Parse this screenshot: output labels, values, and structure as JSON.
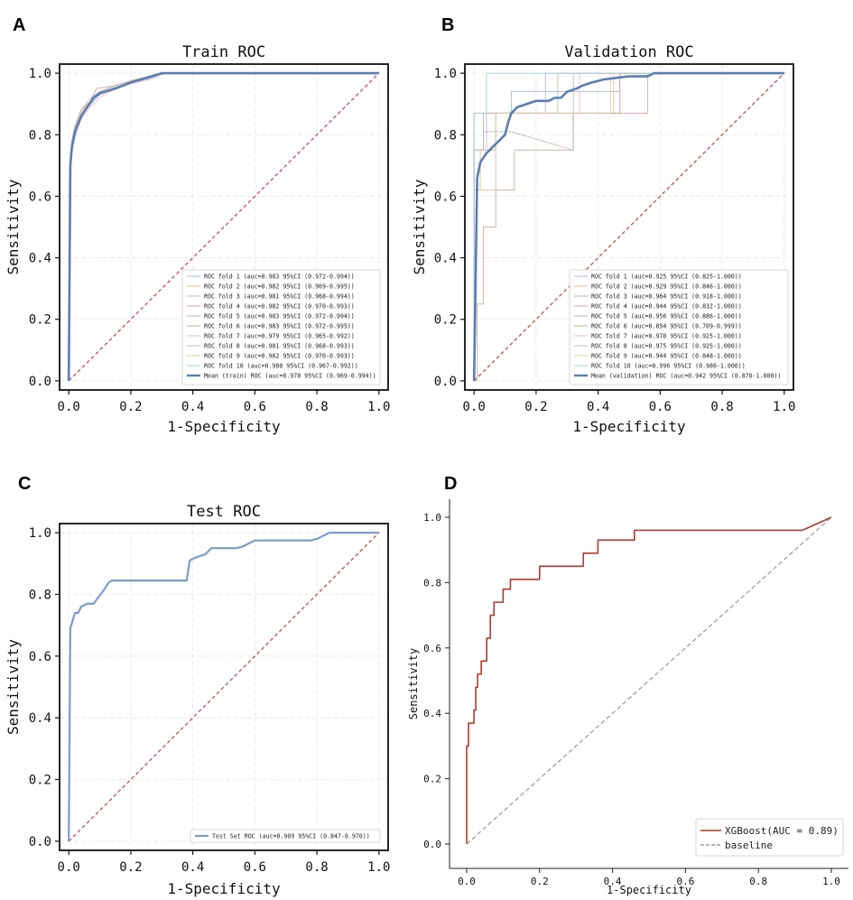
{
  "chart_data": [
    {
      "panel": "A",
      "type": "line",
      "title": "Train ROC",
      "xlabel": "1-Specificity",
      "ylabel": "Sensitivity",
      "xlim": [
        0,
        1
      ],
      "ylim": [
        0,
        1
      ],
      "xticks": [
        "0.0",
        "0.2",
        "0.4",
        "0.6",
        "0.8",
        "1.0"
      ],
      "yticks": [
        "0.0",
        "0.2",
        "0.4",
        "0.6",
        "0.8",
        "1.0"
      ],
      "grid": true,
      "legend_position": "lower-right",
      "series": [
        {
          "name": "ROC fold    1 (auc=0.983 95%CI (0.972-0.994))",
          "color": "#a8bdd8",
          "width": 1,
          "x": [
            0,
            0.005,
            0.01,
            0.02,
            0.04,
            0.07,
            0.1,
            0.15,
            0.2,
            0.26,
            0.3,
            1.0
          ],
          "y": [
            0,
            0.72,
            0.77,
            0.82,
            0.87,
            0.91,
            0.94,
            0.96,
            0.975,
            0.99,
            1,
            1
          ]
        },
        {
          "name": "ROC fold    2 (auc=0.982 95%CI (0.969-0.995))",
          "color": "#e8b99a",
          "width": 1,
          "x": [
            0,
            0.005,
            0.01,
            0.02,
            0.04,
            0.07,
            0.1,
            0.15,
            0.2,
            0.27,
            0.3,
            1.0
          ],
          "y": [
            0,
            0.7,
            0.76,
            0.81,
            0.86,
            0.9,
            0.93,
            0.955,
            0.97,
            0.99,
            1,
            1
          ]
        },
        {
          "name": "ROC fold    3 (auc=0.981 95%CI (0.968-0.994))",
          "color": "#a9c9a4",
          "width": 1,
          "x": [
            0,
            0.005,
            0.01,
            0.02,
            0.04,
            0.07,
            0.1,
            0.15,
            0.2,
            0.27,
            0.3,
            1.0
          ],
          "y": [
            0,
            0.69,
            0.75,
            0.8,
            0.86,
            0.9,
            0.93,
            0.95,
            0.97,
            0.985,
            1,
            1
          ]
        },
        {
          "name": "ROC fold    4 (auc=0.982 95%CI (0.970-0.993))",
          "color": "#d9a2a2",
          "width": 1,
          "x": [
            0,
            0.005,
            0.01,
            0.02,
            0.04,
            0.07,
            0.09,
            0.15,
            0.2,
            0.26,
            0.3,
            1.0
          ],
          "y": [
            0,
            0.71,
            0.77,
            0.82,
            0.87,
            0.91,
            0.95,
            0.96,
            0.975,
            0.99,
            1,
            1
          ]
        },
        {
          "name": "ROC fold    5 (auc=0.983 95%CI (0.972-0.994))",
          "color": "#c2b3d6",
          "width": 1,
          "x": [
            0,
            0.005,
            0.01,
            0.02,
            0.04,
            0.07,
            0.1,
            0.15,
            0.2,
            0.26,
            0.3,
            1.0
          ],
          "y": [
            0,
            0.73,
            0.78,
            0.83,
            0.88,
            0.92,
            0.94,
            0.96,
            0.975,
            0.99,
            1,
            1
          ]
        },
        {
          "name": "ROC fold    6 (auc=0.983 95%CI (0.972-0.995))",
          "color": "#c9ad9b",
          "width": 1,
          "x": [
            0,
            0.005,
            0.01,
            0.02,
            0.04,
            0.07,
            0.1,
            0.15,
            0.2,
            0.26,
            0.3,
            1.0
          ],
          "y": [
            0,
            0.72,
            0.78,
            0.83,
            0.88,
            0.91,
            0.94,
            0.96,
            0.975,
            0.99,
            1,
            1
          ]
        },
        {
          "name": "ROC fold    7 (auc=0.979 95%CI (0.965-0.992))",
          "color": "#e9bcd6",
          "width": 1,
          "x": [
            0,
            0.005,
            0.01,
            0.02,
            0.04,
            0.07,
            0.1,
            0.15,
            0.2,
            0.28,
            0.31,
            1.0
          ],
          "y": [
            0,
            0.68,
            0.74,
            0.79,
            0.85,
            0.89,
            0.92,
            0.95,
            0.965,
            0.985,
            1,
            1
          ]
        },
        {
          "name": "ROC fold    8 (auc=0.981 95%CI (0.968-0.993))",
          "color": "#bdbdbd",
          "width": 1,
          "x": [
            0,
            0.005,
            0.01,
            0.02,
            0.04,
            0.07,
            0.1,
            0.15,
            0.2,
            0.27,
            0.3,
            1.0
          ],
          "y": [
            0,
            0.7,
            0.76,
            0.81,
            0.86,
            0.9,
            0.93,
            0.95,
            0.97,
            0.985,
            1,
            1
          ]
        },
        {
          "name": "ROC fold    9 (auc=0.982 95%CI (0.970-0.993))",
          "color": "#d8d49a",
          "width": 1,
          "x": [
            0,
            0.005,
            0.01,
            0.02,
            0.04,
            0.07,
            0.1,
            0.15,
            0.2,
            0.26,
            0.3,
            1.0
          ],
          "y": [
            0,
            0.71,
            0.77,
            0.82,
            0.87,
            0.91,
            0.935,
            0.955,
            0.97,
            0.99,
            1,
            1
          ]
        },
        {
          "name": "ROC fold   10 (auc=0.980 95%CI (0.967-0.992))",
          "color": "#9fd1d8",
          "width": 1,
          "x": [
            0,
            0.005,
            0.01,
            0.02,
            0.04,
            0.07,
            0.1,
            0.15,
            0.2,
            0.27,
            0.3,
            1.0
          ],
          "y": [
            0,
            0.69,
            0.75,
            0.8,
            0.86,
            0.9,
            0.93,
            0.95,
            0.97,
            0.985,
            1,
            1
          ]
        },
        {
          "name": "Mean (train) ROC (auc=0.978 95%CI (0.969-0.994))",
          "color": "#5b7db4",
          "width": 2.6,
          "x": [
            0,
            0.005,
            0.01,
            0.02,
            0.04,
            0.06,
            0.08,
            0.1,
            0.15,
            0.2,
            0.25,
            0.3,
            1.0
          ],
          "y": [
            0,
            0.7,
            0.76,
            0.81,
            0.86,
            0.89,
            0.92,
            0.935,
            0.95,
            0.97,
            0.985,
            1,
            1
          ]
        }
      ],
      "baseline": {
        "x": [
          0,
          1
        ],
        "y": [
          0,
          1
        ],
        "color": "#c44e52",
        "style": "dashed"
      }
    },
    {
      "panel": "B",
      "type": "line",
      "title": "Validation ROC",
      "xlabel": "1-Specificity",
      "ylabel": "Sensitivity",
      "xlim": [
        0,
        1
      ],
      "ylim": [
        0,
        1
      ],
      "xticks": [
        "0.0",
        "0.2",
        "0.4",
        "0.6",
        "0.8",
        "1.0"
      ],
      "yticks": [
        "0.0",
        "0.2",
        "0.4",
        "0.6",
        "0.8",
        "1.0"
      ],
      "grid": true,
      "legend_position": "lower-right",
      "series": [
        {
          "name": "ROC fold    1 (auc=0.925 95%CI (0.825-1.000))",
          "color": "#a8bdd8",
          "width": 1,
          "x": [
            0,
            0,
            0.02,
            0.02,
            0.07,
            0.07,
            0.12,
            0.12,
            0.47,
            0.47,
            1.0
          ],
          "y": [
            0,
            0.62,
            0.62,
            0.75,
            0.75,
            0.87,
            0.87,
            0.94,
            0.94,
            1,
            1
          ]
        },
        {
          "name": "ROC fold    2 (auc=0.929 95%CI (0.846-1.000))",
          "color": "#e8b99a",
          "width": 1,
          "x": [
            0,
            0,
            0.07,
            0.07,
            0.13,
            0.13,
            0.45,
            0.45,
            1.0
          ],
          "y": [
            0,
            0.62,
            0.62,
            0.87,
            0.87,
            0.87,
            0.87,
            1,
            1
          ]
        },
        {
          "name": "ROC fold    3 (auc=0.964 95%CI (0.918-1.000))",
          "color": "#a9c9a4",
          "width": 1,
          "x": [
            0,
            0,
            0.03,
            0.03,
            0.1,
            0.1,
            0.27,
            0.27,
            1.0
          ],
          "y": [
            0,
            0.75,
            0.75,
            0.87,
            0.87,
            0.87,
            0.87,
            1,
            1
          ]
        },
        {
          "name": "ROC fold    4 (auc=0.944 95%CI (0.832-1.000))",
          "color": "#d9a2a2",
          "width": 1,
          "x": [
            0,
            0,
            0.05,
            0.05,
            0.12,
            0.12,
            0.42,
            0.42,
            0.47,
            0.47,
            1.0
          ],
          "y": [
            0,
            0.87,
            0.87,
            0.87,
            0.87,
            0.87,
            0.87,
            0.87,
            0.87,
            1,
            1
          ]
        },
        {
          "name": "ROC fold    5 (auc=0.956 95%CI (0.886-1.000))",
          "color": "#c2b3d6",
          "width": 1,
          "x": [
            0,
            0,
            0.04,
            0.04,
            0.12,
            0.12,
            0.23,
            0.23,
            1.0
          ],
          "y": [
            0,
            0.75,
            0.75,
            0.87,
            0.87,
            0.87,
            0.87,
            1,
            1
          ]
        },
        {
          "name": "ROC fold    6 (auc=0.854 95%CI (0.709-0.999))",
          "color": "#c9ad9b",
          "width": 1,
          "x": [
            0,
            0.01,
            0.01,
            0.03,
            0.03,
            0.07,
            0.07,
            0.13,
            0.13,
            0.32,
            0.32,
            0.56,
            0.56,
            1.0
          ],
          "y": [
            0,
            0,
            0.25,
            0.25,
            0.5,
            0.5,
            0.62,
            0.62,
            0.75,
            0.75,
            0.87,
            0.87,
            1,
            1
          ]
        },
        {
          "name": "ROC fold    7 (auc=0.970 95%CI (0.925-1.000))",
          "color": "#e9bcd6",
          "width": 1,
          "x": [
            0,
            0,
            0.04,
            0.04,
            0.12,
            0.12,
            0.34,
            0.34,
            1.0
          ],
          "y": [
            0,
            0.75,
            0.75,
            0.87,
            0.87,
            0.87,
            0.87,
            1,
            1
          ]
        },
        {
          "name": "ROC fold    8 (auc=0.975 95%CI (0.925-1.000))",
          "color": "#bdbdbd",
          "width": 1,
          "x": [
            0,
            0,
            0.03,
            0.03,
            0.12,
            0.12,
            0.32,
            0.32,
            1.0
          ],
          "y": [
            0,
            0.75,
            0.75,
            0.81,
            0.81,
            0.81,
            0.75,
            1,
            1
          ]
        },
        {
          "name": "ROC fold    9 (auc=0.944 95%CI (0.848-1.000))",
          "color": "#d8d49a",
          "width": 1,
          "x": [
            0,
            0,
            0.02,
            0.02,
            0.07,
            0.07,
            0.32,
            0.32,
            0.44,
            0.44,
            1.0
          ],
          "y": [
            0,
            0.62,
            0.62,
            0.75,
            0.75,
            0.87,
            0.87,
            0.87,
            0.87,
            1,
            1
          ]
        },
        {
          "name": "ROC fold   10 (auc=0.996 95%CI (0.986-1.000))",
          "color": "#9fd1d8",
          "width": 1,
          "x": [
            0,
            0,
            0.04,
            0.04,
            0.13,
            0.13,
            1.0
          ],
          "y": [
            0,
            0.87,
            0.87,
            1,
            1,
            1,
            1
          ]
        },
        {
          "name": "Mean (validation) ROC (auc=0.942 95%CI (0.870-1.000))",
          "color": "#5b7db4",
          "width": 2.6,
          "x": [
            0,
            0.01,
            0.02,
            0.04,
            0.06,
            0.08,
            0.1,
            0.11,
            0.12,
            0.14,
            0.2,
            0.24,
            0.26,
            0.28,
            0.3,
            0.33,
            0.35,
            0.38,
            0.42,
            0.5,
            0.56,
            0.58,
            0.6,
            1.0
          ],
          "y": [
            0,
            0.66,
            0.71,
            0.74,
            0.76,
            0.78,
            0.8,
            0.84,
            0.87,
            0.89,
            0.91,
            0.91,
            0.92,
            0.92,
            0.94,
            0.95,
            0.96,
            0.97,
            0.98,
            0.99,
            0.99,
            1,
            1,
            1
          ]
        }
      ],
      "baseline": {
        "x": [
          0,
          1
        ],
        "y": [
          0,
          1
        ],
        "color": "#c44e52",
        "style": "dashed"
      }
    },
    {
      "panel": "C",
      "type": "line",
      "title": "Test ROC",
      "xlabel": "1-Specificity",
      "ylabel": "Sensitivity",
      "xlim": [
        0,
        1
      ],
      "ylim": [
        0,
        1
      ],
      "xticks": [
        "0.0",
        "0.2",
        "0.4",
        "0.6",
        "0.8",
        "1.0"
      ],
      "yticks": [
        "0.0",
        "0.2",
        "0.4",
        "0.6",
        "0.8",
        "1.0"
      ],
      "grid": true,
      "legend_position": "lower-right",
      "series": [
        {
          "name": "Test Set ROC (auc=0.909 95%CI (0.847-0.970))",
          "color": "#7d9cc9",
          "width": 2.2,
          "x": [
            0,
            0.005,
            0.02,
            0.03,
            0.04,
            0.06,
            0.08,
            0.11,
            0.13,
            0.14,
            0.38,
            0.39,
            0.41,
            0.44,
            0.46,
            0.54,
            0.56,
            0.58,
            0.6,
            0.78,
            0.8,
            0.82,
            0.84,
            0.86,
            1.0
          ],
          "y": [
            0,
            0.69,
            0.74,
            0.74,
            0.76,
            0.77,
            0.77,
            0.81,
            0.84,
            0.845,
            0.845,
            0.91,
            0.92,
            0.93,
            0.95,
            0.95,
            0.955,
            0.965,
            0.975,
            0.975,
            0.98,
            0.99,
            1,
            1,
            1
          ]
        }
      ],
      "baseline": {
        "x": [
          0,
          1
        ],
        "y": [
          0,
          1
        ],
        "color": "#c44e52",
        "style": "dashed"
      }
    },
    {
      "panel": "D",
      "type": "line",
      "title": "",
      "xlabel": "1-Specificity",
      "ylabel": "Sensitivity",
      "xlim": [
        0,
        1
      ],
      "ylim": [
        0,
        1
      ],
      "xticks": [
        "0.0",
        "0.2",
        "0.4",
        "0.6",
        "0.8",
        "1.0"
      ],
      "yticks": [
        "0.0",
        "0.2",
        "0.4",
        "0.6",
        "0.8",
        "1.0"
      ],
      "grid": false,
      "legend_position": "lower-right",
      "series": [
        {
          "name": "XGBoost(AUC = 0.89)",
          "color": "#b03a2e",
          "width": 1.6,
          "x": [
            0,
            0,
            0.005,
            0.005,
            0.02,
            0.02,
            0.025,
            0.025,
            0.03,
            0.03,
            0.04,
            0.04,
            0.055,
            0.055,
            0.065,
            0.065,
            0.075,
            0.075,
            0.1,
            0.1,
            0.12,
            0.12,
            0.13,
            0.13,
            0.2,
            0.2,
            0.32,
            0.32,
            0.34,
            0.34,
            0.36,
            0.36,
            0.46,
            0.46,
            0.92,
            1.0
          ],
          "y": [
            0,
            0.3,
            0.3,
            0.37,
            0.37,
            0.41,
            0.41,
            0.48,
            0.48,
            0.52,
            0.52,
            0.56,
            0.56,
            0.63,
            0.63,
            0.7,
            0.7,
            0.74,
            0.74,
            0.78,
            0.78,
            0.81,
            0.81,
            0.81,
            0.81,
            0.85,
            0.85,
            0.89,
            0.89,
            0.89,
            0.89,
            0.93,
            0.93,
            0.96,
            0.96,
            1.0
          ]
        },
        {
          "name": "baseline",
          "color": "#8c8c8c",
          "width": 1.2,
          "dashed": true,
          "x": [
            0,
            1
          ],
          "y": [
            0,
            1
          ]
        }
      ]
    }
  ],
  "panels": [
    {
      "letter": "A"
    },
    {
      "letter": "B"
    },
    {
      "letter": "C"
    },
    {
      "letter": "D"
    }
  ]
}
